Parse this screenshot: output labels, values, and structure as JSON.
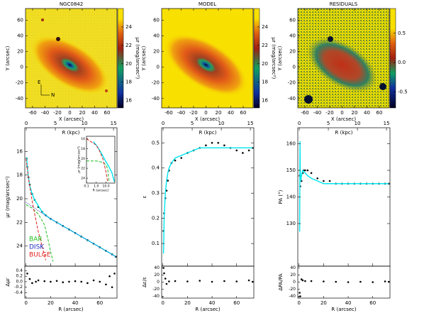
{
  "chart_data": [
    {
      "type": "image",
      "title": "NGC0842",
      "x_label": "X (arcsec)",
      "y_label": "Y (arcsec)",
      "xlim": [
        -71.4,
        76
      ],
      "ylim": [
        -52,
        75
      ],
      "xticks": [
        -60,
        -40,
        -20,
        0,
        20,
        40,
        60
      ],
      "yticks": [
        -40,
        -20,
        0,
        20,
        40,
        60
      ],
      "annotations": [
        "E",
        "N"
      ],
      "colorbar": {
        "label": "μr (mag/arcsec²)",
        "lim": [
          15.2,
          26
        ],
        "ticks": [
          16,
          18,
          20,
          22,
          24
        ]
      }
    },
    {
      "type": "image",
      "title": "MODEL",
      "x_label": "X (arcsec)",
      "y_label": "Y (arcsec)",
      "xlim": [
        -71.4,
        76
      ],
      "ylim": [
        -52,
        75
      ],
      "xticks": [
        -60,
        -40,
        -20,
        0,
        20,
        40,
        60
      ],
      "yticks": [
        -40,
        -20,
        0,
        20,
        40,
        60
      ],
      "colorbar": {
        "label": "μr (mag/arcsec²)",
        "lim": [
          15.2,
          26
        ],
        "ticks": [
          16,
          18,
          20,
          22,
          24
        ]
      }
    },
    {
      "type": "image",
      "title": "RESIDUALS",
      "x_label": "X (arcsec)",
      "y_label": "Y (arcsec)",
      "xlim": [
        -71.4,
        76
      ],
      "ylim": [
        -52,
        75
      ],
      "xticks": [
        -60,
        -40,
        -20,
        0,
        20,
        40,
        60
      ],
      "yticks": [
        -40,
        -20,
        0,
        20,
        40,
        60
      ],
      "colorbar": {
        "lim": [
          -0.77,
          0.92
        ],
        "ticks": [
          -0.5,
          {
            "value": 0,
            "label": "0.0"
          },
          0.5
        ]
      }
    },
    {
      "type": "profile",
      "x_label": "R (arcsec)",
      "y_label": "μr (mag/arcsec²)",
      "x2_label": "R (kpc)",
      "xlim": [
        -1,
        74
      ],
      "xticks": [
        0,
        20,
        40,
        60
      ],
      "x2lim": [
        -0.25,
        15.6
      ],
      "x2ticks": [
        0,
        5,
        10,
        15
      ],
      "ylim": [
        25.7,
        14.0
      ],
      "yticks": [
        16,
        18,
        20,
        22,
        24
      ],
      "legend": "lower left",
      "series": [
        {
          "style": "points",
          "color": "#000000",
          "x": [
            0.5,
            1,
            2,
            3,
            5,
            7,
            10,
            13,
            16,
            20,
            25,
            30,
            35,
            40,
            45,
            50,
            55,
            60,
            65,
            70,
            73
          ],
          "values": [
            16.6,
            17.3,
            18.2,
            18.8,
            19.6,
            20.1,
            20.7,
            21.1,
            21.4,
            21.7,
            22.0,
            22.3,
            22.6,
            22.9,
            23.2,
            23.5,
            23.8,
            24.1,
            24.4,
            24.7,
            24.9
          ]
        },
        {
          "style": "line",
          "color": "#00e5ee",
          "x": [
            0.5,
            1,
            2,
            3,
            5,
            7,
            10,
            13,
            16,
            20,
            25,
            30,
            35,
            40,
            45,
            50,
            55,
            60,
            65,
            70,
            73
          ],
          "values": [
            16.5,
            17.3,
            18.2,
            18.9,
            19.6,
            20.1,
            20.6,
            21.1,
            21.4,
            21.7,
            22.0,
            22.3,
            22.6,
            22.9,
            23.2,
            23.5,
            23.8,
            24.1,
            24.4,
            24.7,
            24.9
          ]
        },
        {
          "name": "BAR",
          "style": "dashed",
          "color": "#22c022",
          "x": [
            0,
            5,
            10,
            15,
            18,
            20,
            22
          ],
          "values": [
            20.5,
            20.8,
            21.3,
            22.2,
            23.5,
            24.5,
            25.3
          ]
        },
        {
          "name": "DISK",
          "style": "dotted",
          "color": "#2030c0",
          "x": [
            0,
            20,
            40,
            60,
            73
          ],
          "values": [
            20.3,
            21.7,
            22.9,
            24.1,
            24.9
          ]
        },
        {
          "name": "BULGE",
          "style": "dashed",
          "color": "#e02020",
          "x": [
            0,
            2,
            5,
            8,
            10,
            13,
            16
          ],
          "values": [
            16.6,
            18.3,
            20.2,
            21.8,
            22.8,
            24.0,
            25.2
          ]
        }
      ],
      "residual": {
        "y_label": "Δμr",
        "ylim": [
          -0.6,
          0.57
        ],
        "yticks": [
          -0.4,
          -0.2,
          {
            "value": 0,
            "label": "0.0"
          },
          0.2,
          0.4
        ],
        "x": [
          1,
          3,
          5,
          8,
          10,
          15,
          20,
          25,
          30,
          35,
          40,
          45,
          50,
          55,
          60,
          65,
          68,
          70,
          72
        ],
        "values": [
          0.3,
          0.1,
          -0.05,
          0,
          0.05,
          0.02,
          0,
          0.03,
          -0.02,
          0,
          0.02,
          0,
          -0.05,
          0.05,
          0,
          -0.1,
          0.2,
          -0.2,
          0.3
        ]
      }
    },
    {
      "type": "profile",
      "x_label": "R (arcsec)",
      "y_label": "ε",
      "x2_label": "R (kpc)",
      "xlim": [
        -1,
        74
      ],
      "xticks": [
        0,
        20,
        40,
        60
      ],
      "x2lim": [
        -0.25,
        15.6
      ],
      "x2ticks": [
        0,
        5,
        10,
        15
      ],
      "ylim": [
        0.01,
        0.56
      ],
      "yticks": [
        0.1,
        0.2,
        0.3,
        0.4,
        0.5
      ],
      "series": [
        {
          "style": "points",
          "color": "#000000",
          "x": [
            0.5,
            1,
            2,
            3,
            4,
            5,
            7,
            10,
            15,
            20,
            25,
            30,
            35,
            40,
            45,
            50,
            55,
            60,
            65,
            70,
            73
          ],
          "values": [
            0.15,
            0.22,
            0.28,
            0.31,
            0.35,
            0.39,
            0.42,
            0.43,
            0.44,
            0.46,
            0.47,
            0.48,
            0.49,
            0.5,
            0.5,
            0.49,
            0.48,
            0.47,
            0.46,
            0.47,
            0.48
          ]
        },
        {
          "style": "line",
          "color": "#00e5ee",
          "x": [
            0.5,
            1,
            2,
            3,
            4,
            5,
            7,
            10,
            15,
            20,
            25,
            30,
            35,
            40,
            45,
            50,
            55,
            60,
            65,
            70,
            73
          ],
          "values": [
            0.06,
            0.2,
            0.3,
            0.35,
            0.38,
            0.4,
            0.42,
            0.44,
            0.45,
            0.46,
            0.47,
            0.48,
            0.48,
            0.48,
            0.48,
            0.48,
            0.48,
            0.48,
            0.48,
            0.48,
            0.48
          ]
        }
      ],
      "residual": {
        "y_label": "Δε/ε",
        "ylim": [
          -45,
          45
        ],
        "yticks": [
          -40,
          -20,
          0,
          20,
          40
        ],
        "x": [
          0.5,
          1,
          2,
          3,
          5,
          10,
          20,
          30,
          40,
          50,
          60,
          70,
          73
        ],
        "values": [
          40,
          25,
          10,
          -5,
          2,
          3,
          2,
          4,
          1,
          3,
          2,
          5,
          1
        ]
      }
    },
    {
      "type": "profile",
      "x_label": "R (arcsec)",
      "y_label": "PA (°)",
      "x2_label": "R (kpc)",
      "xlim": [
        -1,
        74
      ],
      "xticks": [
        0,
        20,
        40,
        60
      ],
      "x2lim": [
        -0.25,
        15.6
      ],
      "x2ticks": [
        0,
        5,
        10,
        15
      ],
      "ylim": [
        114,
        166
      ],
      "yticks": [
        130,
        140,
        150,
        160
      ],
      "series": [
        {
          "style": "points",
          "color": "#000000",
          "x": [
            0.5,
            1,
            2,
            3,
            4,
            5,
            7,
            10,
            15,
            20,
            25,
            30,
            35,
            40,
            45,
            50,
            55,
            60,
            65,
            70,
            73
          ],
          "values": [
            148,
            144,
            146,
            149,
            150,
            150,
            150,
            149,
            147,
            146,
            146,
            145,
            145,
            145,
            145,
            145,
            145,
            145,
            145,
            145,
            145
          ]
        },
        {
          "style": "line",
          "color": "#00e5ee",
          "x": [
            0.5,
            0.8,
            1,
            1.5,
            2,
            3,
            5,
            7,
            10,
            15,
            20,
            30,
            40,
            50,
            60,
            70,
            73
          ],
          "values": [
            127,
            161,
            150,
            146,
            148,
            150,
            149,
            148,
            147,
            146,
            145,
            145,
            145,
            145,
            145,
            145,
            145
          ]
        }
      ],
      "residual": {
        "y_label": "ΔPA/PA",
        "ylim": [
          -45,
          45
        ],
        "yticks": [
          -40,
          -20,
          0,
          20,
          40
        ],
        "x": [
          0.5,
          1,
          2,
          3,
          5,
          10,
          20,
          30,
          40,
          50,
          60,
          70,
          73
        ],
        "values": [
          -30,
          -40,
          8,
          5,
          3,
          3,
          2,
          1,
          0,
          1,
          0,
          2,
          1
        ]
      }
    },
    {
      "type": "inset",
      "x_label": "R (arcsec)",
      "y_label": "μr (mag/arcsec²)",
      "xlog": true,
      "xlim": [
        0.1,
        80
      ],
      "xticks": [
        0.1,
        {
          "value": 1,
          "label": "1.0"
        },
        {
          "value": 10,
          "label": "10.0"
        }
      ],
      "ylim": [
        25,
        15.5
      ],
      "yticks": [
        16,
        18,
        20,
        22,
        24
      ],
      "series": [
        {
          "style": "line",
          "color": "#00e5ee",
          "x": [
            0.5,
            1,
            2,
            5,
            10,
            20,
            40,
            70
          ],
          "values": [
            16.6,
            17.3,
            18.2,
            19.6,
            20.7,
            21.7,
            22.9,
            24.7
          ]
        },
        {
          "style": "dashed",
          "color": "#22c022",
          "x": [
            0.1,
            1,
            5,
            10,
            15,
            20
          ],
          "values": [
            20.5,
            20.5,
            20.8,
            21.3,
            22.2,
            24.5
          ]
        },
        {
          "style": "dashed",
          "color": "#e02020",
          "x": [
            0.1,
            1,
            2,
            5,
            10,
            15
          ],
          "values": [
            16.0,
            17.3,
            18.3,
            20.2,
            22.8,
            24.8
          ]
        }
      ]
    }
  ]
}
